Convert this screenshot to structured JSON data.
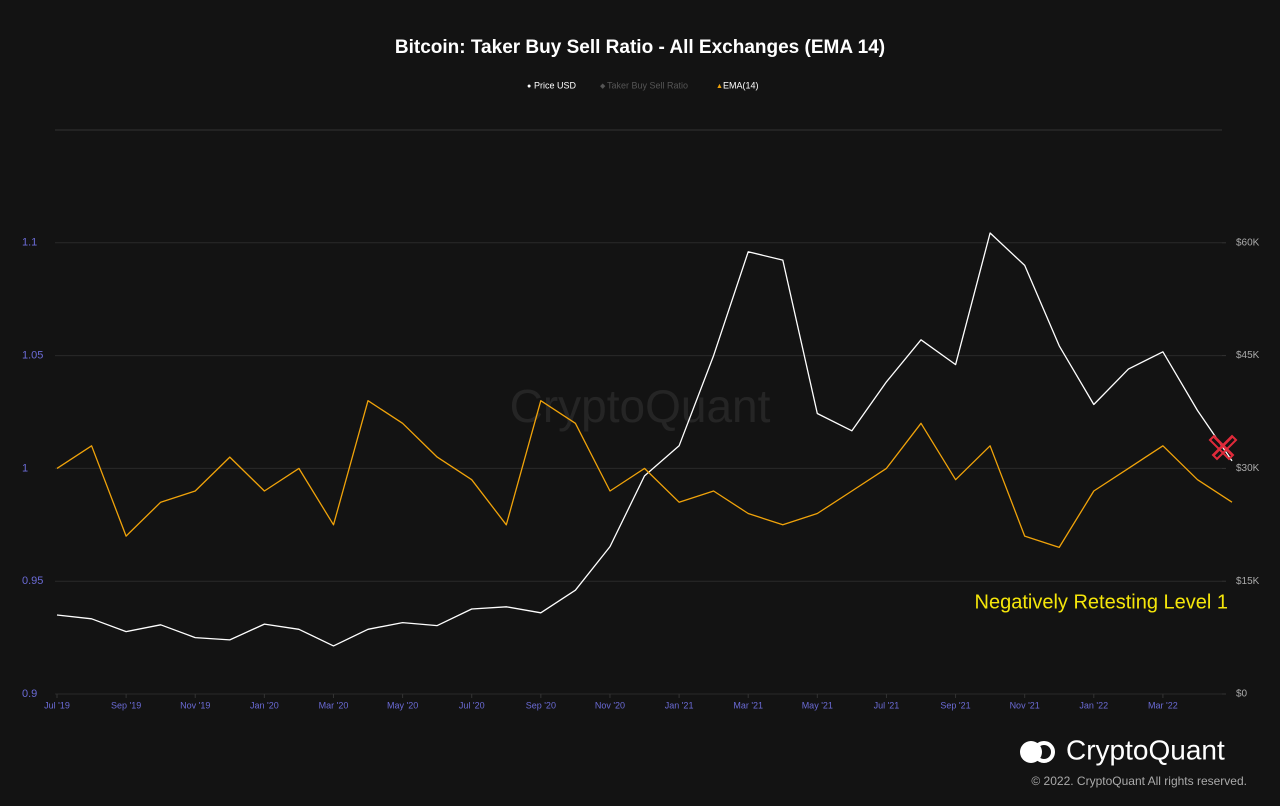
{
  "chart_data": {
    "type": "line",
    "title": "Bitcoin: Taker Buy Sell Ratio - All Exchanges (EMA 14)",
    "watermark": "CryptoQuant",
    "annotation": "Negatively Retesting Level 1",
    "brand": "CryptoQuant",
    "copyright": "© 2022. CryptoQuant All rights reserved.",
    "x": [
      "2019-07",
      "2019-08",
      "2019-09",
      "2019-10",
      "2019-11",
      "2019-12",
      "2020-01",
      "2020-02",
      "2020-03",
      "2020-04",
      "2020-05",
      "2020-06",
      "2020-07",
      "2020-08",
      "2020-09",
      "2020-10",
      "2020-11",
      "2020-12",
      "2021-01",
      "2021-02",
      "2021-03",
      "2021-04",
      "2021-05",
      "2021-06",
      "2021-07",
      "2021-08",
      "2021-09",
      "2021-10",
      "2021-11",
      "2021-12",
      "2022-01",
      "2022-02",
      "2022-03",
      "2022-04",
      "2022-05"
    ],
    "xticks": [
      {
        "value": "2019-07",
        "label": "Jul '19"
      },
      {
        "value": "2019-09",
        "label": "Sep '19"
      },
      {
        "value": "2019-11",
        "label": "Nov '19"
      },
      {
        "value": "2020-01",
        "label": "Jan '20"
      },
      {
        "value": "2020-03",
        "label": "Mar '20"
      },
      {
        "value": "2020-05",
        "label": "May '20"
      },
      {
        "value": "2020-07",
        "label": "Jul '20"
      },
      {
        "value": "2020-09",
        "label": "Sep '20"
      },
      {
        "value": "2020-11",
        "label": "Nov '20"
      },
      {
        "value": "2021-01",
        "label": "Jan '21"
      },
      {
        "value": "2021-03",
        "label": "Mar '21"
      },
      {
        "value": "2021-05",
        "label": "May '21"
      },
      {
        "value": "2021-07",
        "label": "Jul '21"
      },
      {
        "value": "2021-09",
        "label": "Sep '21"
      },
      {
        "value": "2021-11",
        "label": "Nov '21"
      },
      {
        "value": "2022-01",
        "label": "Jan '22"
      },
      {
        "value": "2022-03",
        "label": "Mar '22"
      }
    ],
    "ylim": [
      0.9,
      1.15
    ],
    "yticks": [
      0.9,
      0.95,
      1,
      1.05,
      1.1
    ],
    "y2lim": [
      0,
      75000
    ],
    "y2ticks": [
      {
        "value": 0,
        "label": "$0"
      },
      {
        "value": 15000,
        "label": "$15K"
      },
      {
        "value": 30000,
        "label": "$30K"
      },
      {
        "value": 45000,
        "label": "$45K"
      },
      {
        "value": 60000,
        "label": "$60K"
      }
    ],
    "grid": true,
    "series": [
      {
        "name": "Price USD",
        "color": "#ffffff",
        "axis": "y2",
        "values": [
          10500,
          10000,
          8300,
          9200,
          7500,
          7200,
          9300,
          8600,
          6400,
          8600,
          9500,
          9100,
          11300,
          11600,
          10800,
          13800,
          19600,
          29000,
          33000,
          45000,
          58800,
          57700,
          37300,
          35000,
          41500,
          47100,
          43800,
          61300,
          57000,
          46300,
          38500,
          43200,
          45500,
          37700,
          31000
        ]
      },
      {
        "name": "Taker Buy Sell Ratio",
        "color": "#555555",
        "hidden": true,
        "values": [
          null,
          null,
          null,
          null,
          null,
          null,
          null,
          null,
          null,
          null,
          null,
          null,
          null,
          null,
          null,
          null,
          null,
          null,
          null,
          null,
          null,
          null,
          null,
          null,
          null,
          null,
          null,
          null,
          null,
          null,
          null,
          null,
          null,
          null,
          null
        ]
      },
      {
        "name": "EMA(14)",
        "color": "#f0a30a",
        "values": [
          1.0,
          1.01,
          0.97,
          0.985,
          0.99,
          1.005,
          0.99,
          1.0,
          0.975,
          1.03,
          1.02,
          1.005,
          0.995,
          0.975,
          1.03,
          1.02,
          0.99,
          1.0,
          0.985,
          0.99,
          0.98,
          0.975,
          0.98,
          0.99,
          1.0,
          1.02,
          0.995,
          1.01,
          0.97,
          0.965,
          0.99,
          1.0,
          1.01,
          0.995,
          0.985
        ]
      }
    ]
  }
}
